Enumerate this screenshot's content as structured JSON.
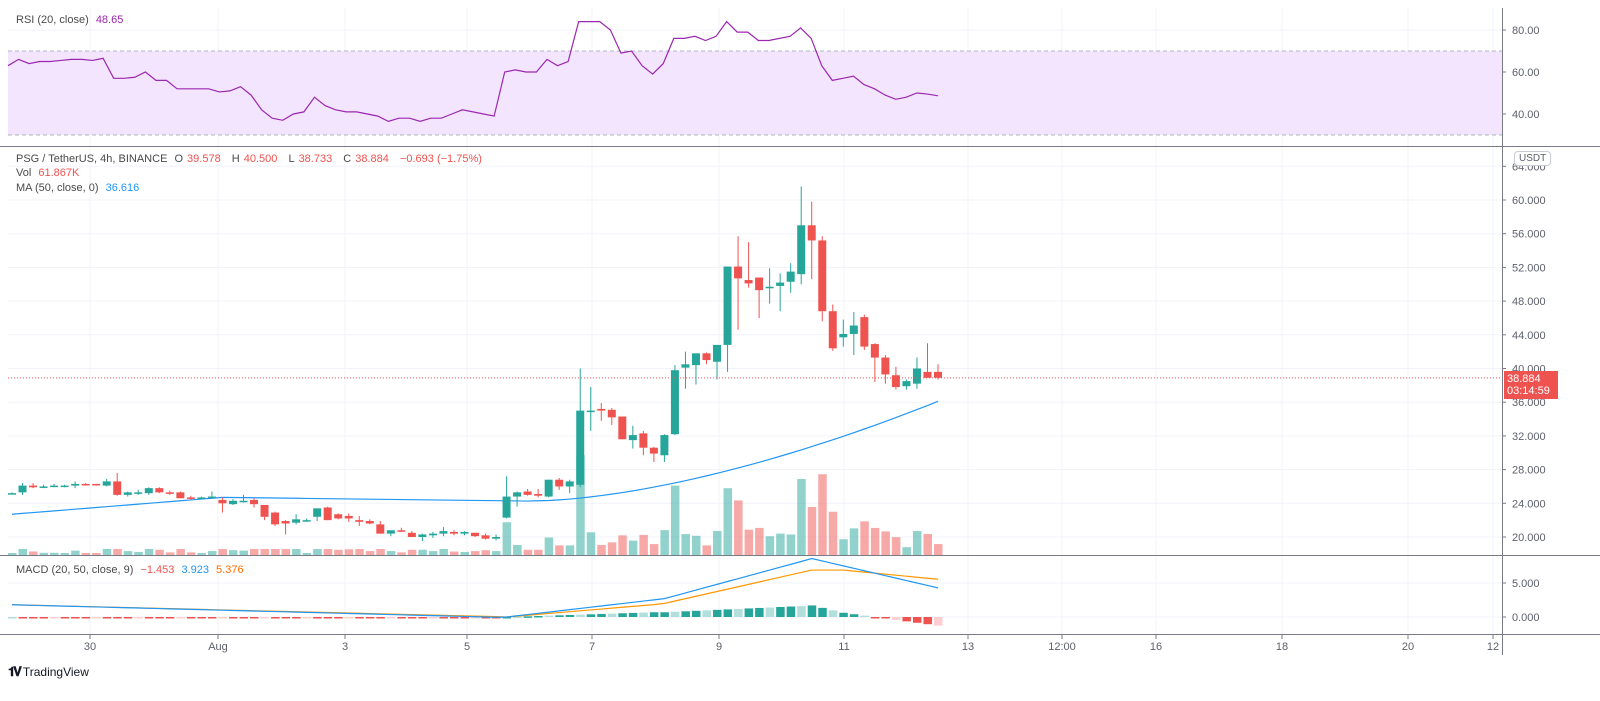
{
  "rsi": {
    "label": "RSI (20, close)",
    "value": "48.65",
    "axis_ticks": [
      "80.00",
      "60.00",
      "40.00"
    ],
    "color": "#9c27b0"
  },
  "main": {
    "symbol": "PSG / TetherUS, 4h, BINANCE",
    "open_label": "O",
    "open": "39.578",
    "high_label": "H",
    "high": "40.500",
    "low_label": "L",
    "low": "38.733",
    "close_label": "C",
    "close": "38.884",
    "change": "−0.693 (−1.75%)",
    "vol_label": "Vol",
    "vol_value": "61.867K",
    "ma_label": "MA (50, close, 0)",
    "ma_value": "36.616",
    "currency": "USDT",
    "axis_ticks": [
      "64.000",
      "60.000",
      "56.000",
      "52.000",
      "48.000",
      "44.000",
      "40.000",
      "36.000",
      "32.000",
      "28.000",
      "24.000",
      "20.000"
    ],
    "last_price": "38.884",
    "countdown": "03:14:59",
    "up_color": "#26a69a",
    "down_color": "#ef5350",
    "ma_color": "#2196f3"
  },
  "macd": {
    "label": "MACD (20, 50, close, 9)",
    "hist_value": "−1.453",
    "macd_value": "3.923",
    "signal_value": "5.376",
    "axis_ticks": [
      "5.000",
      "0.000"
    ]
  },
  "x_axis": {
    "ticks": [
      "30",
      "Aug",
      "3",
      "5",
      "7",
      "9",
      "11",
      "13",
      "12:00",
      "16",
      "18",
      "20",
      "12"
    ]
  },
  "branding": {
    "logo_text": "TradingView"
  },
  "chart_data": [
    {
      "type": "candlestick",
      "title": "PSG / TetherUS, 4h, BINANCE",
      "ylabel": "USDT",
      "ylim": [
        18,
        65
      ],
      "x_tick_labels": [
        "30",
        "Aug",
        "3",
        "5",
        "7",
        "9",
        "11",
        "13"
      ],
      "ohlc": [
        [
          25.2,
          25.3,
          25.1,
          25.2
        ],
        [
          25.3,
          26.4,
          25.0,
          26.1
        ],
        [
          26.1,
          26.4,
          25.8,
          25.9
        ],
        [
          25.9,
          26.2,
          25.8,
          26.0
        ],
        [
          26.0,
          26.3,
          25.9,
          26.1
        ],
        [
          26.0,
          26.2,
          25.9,
          26.1
        ],
        [
          26.1,
          26.6,
          25.8,
          26.3
        ],
        [
          26.3,
          26.4,
          26.1,
          26.2
        ],
        [
          26.3,
          26.3,
          26.1,
          26.2
        ],
        [
          26.1,
          26.9,
          26.0,
          26.6
        ],
        [
          26.6,
          27.6,
          24.9,
          25.0
        ],
        [
          25.0,
          25.4,
          24.8,
          25.3
        ],
        [
          25.2,
          25.6,
          25.0,
          25.3
        ],
        [
          25.2,
          25.9,
          25.0,
          25.8
        ],
        [
          25.8,
          25.9,
          25.2,
          25.3
        ],
        [
          25.3,
          25.5,
          25.0,
          25.2
        ],
        [
          25.3,
          25.4,
          24.6,
          24.6
        ],
        [
          24.7,
          24.9,
          24.4,
          24.6
        ],
        [
          24.6,
          24.8,
          24.5,
          24.7
        ],
        [
          24.7,
          25.4,
          24.6,
          24.8
        ],
        [
          24.4,
          24.7,
          22.9,
          24.0
        ],
        [
          23.9,
          24.5,
          23.8,
          24.3
        ],
        [
          24.2,
          25.0,
          24.1,
          24.3
        ],
        [
          24.4,
          24.6,
          23.5,
          23.9
        ],
        [
          23.8,
          23.8,
          22.0,
          22.4
        ],
        [
          22.9,
          23.0,
          21.3,
          21.5
        ],
        [
          21.9,
          22.0,
          20.3,
          21.6
        ],
        [
          21.7,
          22.7,
          21.5,
          22.1
        ],
        [
          22.0,
          22.2,
          21.8,
          22.0
        ],
        [
          22.4,
          23.0,
          21.9,
          23.4
        ],
        [
          23.5,
          23.6,
          22.1,
          22.0
        ],
        [
          22.7,
          22.8,
          22.1,
          22.2
        ],
        [
          22.5,
          22.8,
          21.8,
          22.2
        ],
        [
          22.0,
          22.5,
          21.3,
          21.8
        ],
        [
          21.9,
          22.1,
          21.5,
          21.6
        ],
        [
          21.5,
          21.9,
          20.7,
          20.4
        ],
        [
          20.4,
          20.6,
          20.1,
          20.8
        ],
        [
          20.8,
          21.1,
          20.6,
          20.7
        ],
        [
          20.5,
          20.7,
          20.0,
          20.0
        ],
        [
          20.0,
          20.4,
          19.5,
          20.3
        ],
        [
          20.2,
          20.6,
          19.9,
          20.4
        ],
        [
          20.4,
          21.2,
          20.1,
          20.7
        ],
        [
          20.6,
          20.8,
          20.2,
          20.4
        ],
        [
          20.4,
          20.7,
          20.2,
          20.6
        ],
        [
          20.5,
          20.5,
          20.0,
          20.1
        ],
        [
          20.2,
          20.4,
          19.7,
          19.8
        ],
        [
          19.8,
          20.3,
          19.6,
          20.0
        ],
        [
          22.3,
          27.2,
          22.2,
          24.8
        ],
        [
          24.8,
          25.4,
          23.6,
          25.3
        ],
        [
          25.4,
          25.7,
          24.9,
          25.0
        ],
        [
          25.1,
          25.7,
          24.7,
          24.9
        ],
        [
          24.8,
          26.7,
          24.7,
          26.8
        ],
        [
          26.8,
          27.0,
          25.6,
          26.0
        ],
        [
          26.0,
          26.8,
          25.2,
          26.6
        ],
        [
          26.2,
          40.0,
          25.9,
          35.0
        ],
        [
          35.0,
          37.8,
          32.6,
          35.0
        ],
        [
          35.2,
          35.9,
          33.8,
          35.0
        ],
        [
          35.1,
          35.3,
          33.3,
          34.2
        ],
        [
          34.3,
          34.1,
          32.3,
          31.6
        ],
        [
          31.5,
          33.2,
          30.5,
          32.1
        ],
        [
          32.3,
          32.6,
          29.7,
          30.6
        ],
        [
          30.6,
          30.7,
          28.9,
          29.9
        ],
        [
          29.7,
          32.2,
          28.9,
          32.1
        ],
        [
          32.2,
          40.4,
          32.1,
          39.8
        ],
        [
          40.1,
          42.0,
          37.6,
          40.5
        ],
        [
          40.4,
          41.1,
          38.1,
          41.8
        ],
        [
          41.8,
          41.9,
          40.5,
          41.0
        ],
        [
          40.8,
          42.2,
          38.7,
          42.8
        ],
        [
          42.8,
          45.6,
          39.6,
          52.1
        ],
        [
          52.1,
          55.7,
          44.6,
          50.7
        ],
        [
          50.5,
          55.0,
          49.6,
          50.1
        ],
        [
          50.8,
          50.7,
          46.0,
          49.3
        ],
        [
          49.6,
          51.9,
          47.7,
          49.7
        ],
        [
          49.8,
          51.3,
          46.8,
          50.2
        ],
        [
          50.3,
          52.5,
          49.0,
          51.5
        ],
        [
          51.2,
          61.6,
          50.0,
          57.0
        ],
        [
          57.0,
          59.8,
          50.6,
          55.2
        ],
        [
          55.2,
          55.7,
          45.6,
          46.8
        ],
        [
          46.8,
          47.6,
          42.1,
          42.4
        ],
        [
          43.7,
          45.8,
          42.6,
          44.1
        ],
        [
          44.1,
          46.7,
          41.6,
          45.1
        ],
        [
          46.1,
          46.4,
          42.2,
          42.6
        ],
        [
          42.9,
          43.0,
          38.4,
          41.3
        ],
        [
          41.3,
          41.6,
          38.2,
          39.3
        ],
        [
          39.2,
          40.2,
          37.5,
          37.8
        ],
        [
          37.9,
          38.7,
          37.5,
          38.5
        ],
        [
          38.2,
          41.3,
          37.6,
          40.0
        ],
        [
          39.6,
          43.0,
          38.9,
          38.9
        ],
        [
          39.6,
          40.5,
          38.7,
          38.9
        ]
      ],
      "ma50": {
        "name": "MA (50, close, 0)",
        "last": 36.616
      },
      "volume": {
        "name": "Vol",
        "last": "61.867K"
      }
    },
    {
      "type": "line",
      "title": "RSI (20, close)",
      "ylim": [
        30,
        85
      ],
      "bands": [
        30,
        70
      ],
      "last": 48.65
    },
    {
      "type": "bar+line",
      "title": "MACD (20, 50, close, 9)",
      "series": [
        {
          "name": "Histogram",
          "last": -1.453
        },
        {
          "name": "MACD",
          "last": 3.923
        },
        {
          "name": "Signal",
          "last": 5.376
        }
      ],
      "ylim": [
        -1,
        8
      ]
    }
  ]
}
